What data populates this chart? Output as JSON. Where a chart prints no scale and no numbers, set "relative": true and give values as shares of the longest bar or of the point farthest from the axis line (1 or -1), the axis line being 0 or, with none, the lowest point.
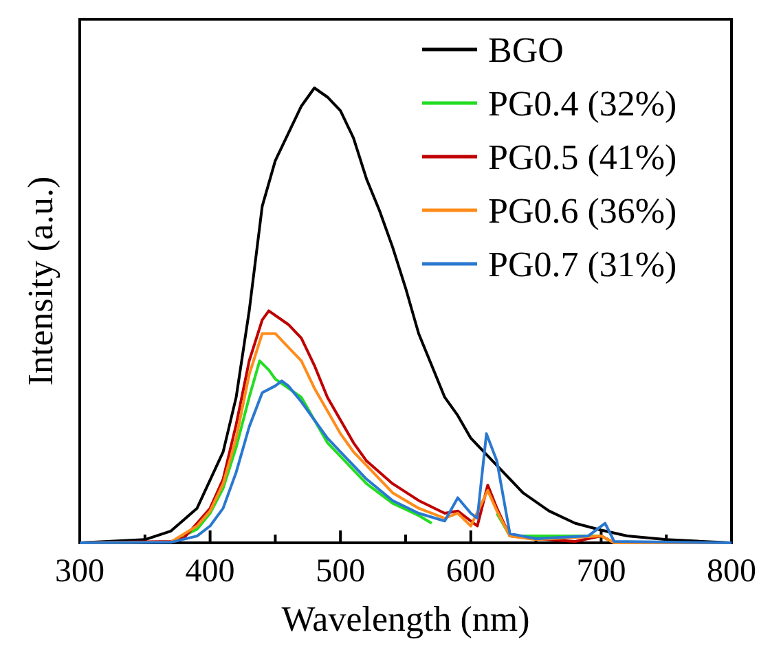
{
  "chart_data": {
    "type": "line",
    "relative": true,
    "xlabel": "Wavelength (nm)",
    "ylabel": "Intensity (a.u.)",
    "xlim": [
      300,
      800
    ],
    "xticks": [
      300,
      {
        "value": 350,
        "label": null
      },
      400,
      {
        "value": 450,
        "label": null
      },
      500,
      {
        "value": 550,
        "label": null
      },
      600,
      {
        "value": 650,
        "label": null
      },
      700,
      {
        "value": 750,
        "label": null
      },
      800
    ],
    "legend": "top right",
    "grid": false,
    "series": [
      {
        "name": "BGO",
        "color": "#000000",
        "x": [
          300,
          350,
          370,
          390,
          410,
          420,
          430,
          440,
          450,
          460,
          470,
          480,
          490,
          500,
          510,
          520,
          530,
          540,
          550,
          560,
          570,
          580,
          590,
          600,
          620,
          640,
          660,
          680,
          700,
          720,
          750,
          800
        ],
        "values": [
          0,
          0.007,
          0.026,
          0.076,
          0.2,
          0.32,
          0.51,
          0.74,
          0.84,
          0.9,
          0.96,
          1,
          0.98,
          0.95,
          0.89,
          0.8,
          0.73,
          0.65,
          0.56,
          0.46,
          0.39,
          0.32,
          0.28,
          0.23,
          0.17,
          0.11,
          0.07,
          0.043,
          0.028,
          0.015,
          0.007,
          0
        ]
      },
      {
        "name": "PG0.4 (32%)",
        "color": "#22dd22",
        "x": [
          300,
          370,
          390,
          400,
          410,
          420,
          430,
          438,
          445,
          450,
          460,
          470,
          480,
          490,
          500,
          520,
          540,
          560,
          570,
          590,
          600,
          613,
          620,
          630,
          700,
          710,
          800
        ],
        "values": [
          0,
          0.002,
          0.03,
          0.065,
          0.12,
          0.21,
          0.32,
          0.4,
          0.38,
          0.36,
          0.34,
          0.32,
          0.27,
          0.22,
          0.19,
          0.13,
          0.087,
          0.06,
          0.043,
          null,
          null,
          null,
          0.065,
          0.015,
          0.015,
          0,
          0
        ]
      },
      {
        "name": "PG0.5 (41%)",
        "color": "#c00000",
        "x": [
          300,
          370,
          380,
          390,
          400,
          410,
          420,
          430,
          440,
          445,
          460,
          470,
          480,
          490,
          500,
          510,
          520,
          540,
          560,
          580,
          590,
          600,
          605,
          613,
          620,
          630,
          650,
          680,
          700,
          710,
          800
        ],
        "values": [
          0,
          0.003,
          0.011,
          0.043,
          0.076,
          0.14,
          0.26,
          0.4,
          0.49,
          0.51,
          0.48,
          0.45,
          0.39,
          0.32,
          0.27,
          0.22,
          0.18,
          0.13,
          0.093,
          0.065,
          0.07,
          0.048,
          0.037,
          0.127,
          0.076,
          0.015,
          0.009,
          0.003,
          0.015,
          0,
          0
        ]
      },
      {
        "name": "PG0.6 (36%)",
        "color": "#ff8c1a",
        "x": [
          300,
          370,
          390,
          400,
          410,
          420,
          430,
          440,
          450,
          460,
          470,
          480,
          490,
          500,
          510,
          520,
          540,
          560,
          580,
          590,
          600,
          613,
          620,
          630,
          650,
          700,
          710,
          800
        ],
        "values": [
          0,
          0.002,
          0.037,
          0.07,
          0.13,
          0.23,
          0.37,
          0.46,
          0.46,
          0.43,
          0.4,
          0.34,
          0.29,
          0.24,
          0.2,
          0.17,
          0.11,
          0.076,
          0.054,
          0.065,
          0.037,
          0.115,
          0.07,
          0.015,
          0.007,
          0.015,
          0,
          0
        ]
      },
      {
        "name": "PG0.7 (31%)",
        "color": "#2a78d0",
        "x": [
          300,
          370,
          390,
          400,
          410,
          420,
          430,
          440,
          450,
          455,
          460,
          470,
          480,
          490,
          500,
          520,
          540,
          560,
          580,
          590,
          600,
          605,
          612,
          620,
          630,
          650,
          690,
          703,
          710,
          800
        ],
        "values": [
          0,
          0.001,
          0.015,
          0.037,
          0.076,
          0.155,
          0.255,
          0.33,
          0.345,
          0.356,
          0.345,
          0.31,
          0.27,
          0.23,
          0.2,
          0.14,
          0.093,
          0.065,
          0.048,
          0.099,
          0.065,
          0.054,
          0.24,
          0.18,
          0.02,
          0.009,
          0.015,
          0.043,
          0.003,
          0
        ]
      }
    ]
  }
}
